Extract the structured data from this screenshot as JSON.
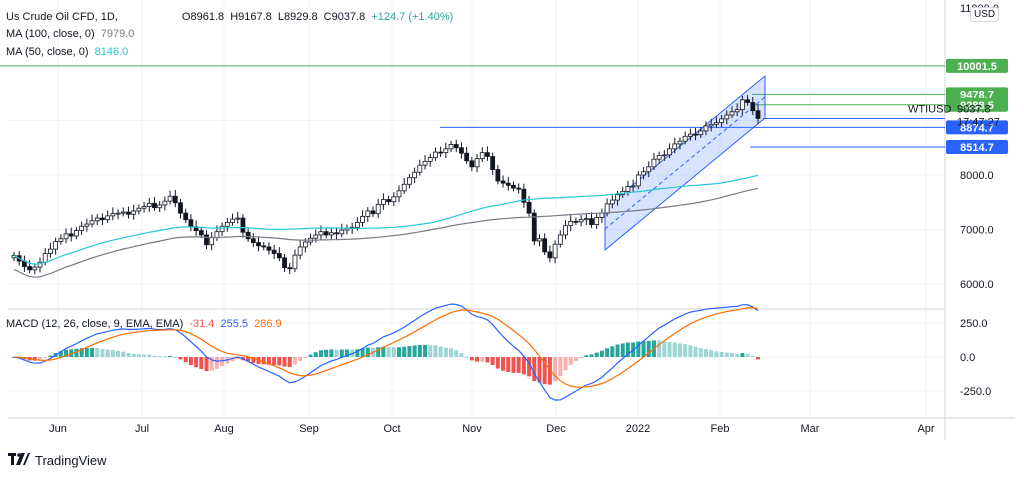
{
  "header": {
    "symbol": "Us Crude Oil CFD, 1D,",
    "open": "O8961.8",
    "high": "H9167.8",
    "low": "L8929.8",
    "close": "C9037.8",
    "change": "+124.7 (+1.40%)",
    "ma100_label": "MA (100, close, 0)",
    "ma100_value": "7979.0",
    "ma50_label": "MA (50, close, 0)",
    "ma50_value": "8146.0",
    "macd_label": "MACD (12, 26, close, 9, EMA, EMA)",
    "macd_hist": "-31.4",
    "macd_line": "255.5",
    "macd_signal": "286.9"
  },
  "currency": "USD",
  "brand": "TradingView",
  "top_axis_partial": "11000.0",
  "colors": {
    "ma50": "#26c6da",
    "ma100": "#787b86",
    "macd": "#2962ff",
    "signal": "#ff6d00",
    "channel": "#2962ff",
    "level_green": "#4caf50",
    "level_blue": "#2962ff",
    "hist_pos": "#26a69a",
    "hist_neg": "#ef5350"
  },
  "chart_data": [
    {
      "type": "candlestick",
      "title": "Us Crude Oil CFD, 1D",
      "symbol": "WTIUSD",
      "last_price": 9037.8,
      "countdown": "17:47:27",
      "y_axis": {
        "ticks": [
          6000.0,
          7000.0,
          8000.0
        ],
        "ylim": [
          5600,
          11000
        ]
      },
      "x_axis": {
        "ticks": [
          "Jun",
          "Jul",
          "Aug",
          "Sep",
          "Oct",
          "Nov",
          "Dec",
          "2022",
          "Feb",
          "Mar",
          "Apr"
        ]
      },
      "closes": [
        6520,
        6420,
        6320,
        6260,
        6310,
        6400,
        6560,
        6640,
        6780,
        6830,
        6920,
        6880,
        6980,
        7060,
        7100,
        7160,
        7210,
        7180,
        7250,
        7290,
        7300,
        7320,
        7280,
        7340,
        7390,
        7420,
        7480,
        7400,
        7450,
        7520,
        7610,
        7490,
        7300,
        7180,
        7050,
        6980,
        6900,
        6720,
        6850,
        6960,
        7060,
        7130,
        7190,
        7210,
        6950,
        6830,
        6760,
        6700,
        6680,
        6620,
        6560,
        6480,
        6300,
        6280,
        6530,
        6680,
        6770,
        6840,
        6900,
        6960,
        6900,
        6940,
        6920,
        6990,
        7020,
        7040,
        7130,
        7240,
        7340,
        7290,
        7460,
        7550,
        7510,
        7600,
        7710,
        7830,
        7950,
        8050,
        8180,
        8250,
        8320,
        8420,
        8410,
        8480,
        8560,
        8500,
        8400,
        8260,
        8150,
        8300,
        8410,
        8340,
        8100,
        7890,
        7850,
        7810,
        7760,
        7740,
        7500,
        7300,
        6790,
        6830,
        6590,
        6480,
        6730,
        6900,
        7070,
        7150,
        7140,
        7180,
        7200,
        7090,
        7220,
        7300,
        7470,
        7540,
        7640,
        7700,
        7790,
        7800,
        8000,
        8060,
        8150,
        8290,
        8360,
        8370,
        8480,
        8570,
        8620,
        8710,
        8750,
        8740,
        8810,
        8900,
        8930,
        8960,
        9030,
        9100,
        9160,
        9200,
        9380,
        9330,
        9180,
        9037.8
      ],
      "series": [
        {
          "name": "MA (100, close, 0)",
          "last": 7979.0
        },
        {
          "name": "MA (50, close, 0)",
          "last": 8146.0
        }
      ],
      "levels": [
        {
          "label": "10001.5",
          "value": 10001.5,
          "color": "green"
        },
        {
          "label": "9478.7",
          "value": 9478.7,
          "color": "green"
        },
        {
          "label": "9288.5",
          "value": 9288.5,
          "color": "green"
        },
        {
          "label": "8874.7",
          "value": 8874.7,
          "color": "blue"
        },
        {
          "label": "8514.7",
          "value": 8514.7,
          "color": "blue"
        }
      ],
      "channel": {
        "type": "ascending parallel channel",
        "from": "Dec",
        "to": "Feb"
      }
    },
    {
      "type": "macd",
      "title": "MACD (12, 26, close, 9, EMA, EMA)",
      "y_axis": {
        "ticks": [
          250.0,
          0.0,
          -250.0
        ],
        "ylim": [
          -360,
          330
        ]
      },
      "last": {
        "histogram": -31.4,
        "macd": 255.5,
        "signal": 286.9
      }
    }
  ]
}
